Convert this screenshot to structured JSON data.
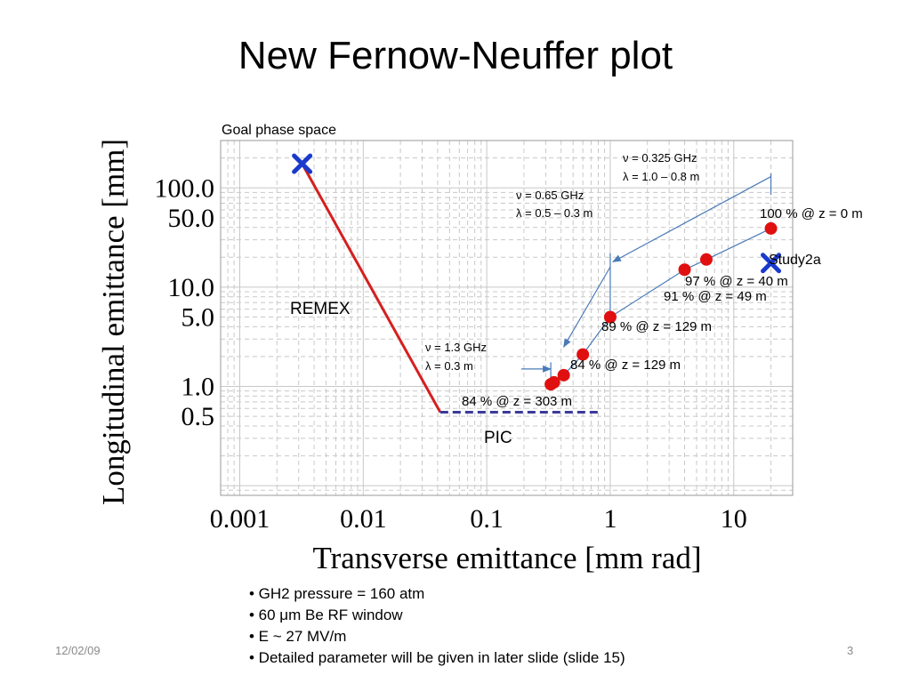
{
  "title": "New Fernow-Neuffer plot",
  "bullets": [
    "• GH2 pressure = 160 atm",
    "• 60 μm Be RF window",
    "• E ~ 27 MV/m",
    "• Detailed parameter will be given in later slide (slide 15)"
  ],
  "footer": {
    "date": "12/02/09",
    "page": "3"
  },
  "colors": {
    "remex_line": "#d42020",
    "pic_line": "#3a3a9a",
    "points": "#e01010",
    "markers": "#1a3acc",
    "arrows": "#4a7ab8",
    "grid": "#c8c8c8"
  },
  "chart_data": {
    "type": "scatter",
    "x_scale": "log",
    "y_scale": "log",
    "xlim": [
      0.0007,
      30
    ],
    "ylim": [
      0.08,
      300
    ],
    "grid": true,
    "xlabel": "Transverse emittance [mm rad]",
    "ylabel": "Longitudinal emittance [mm]",
    "x_ticks": [
      {
        "value": 0.001,
        "label": "0.001"
      },
      {
        "value": 0.01,
        "label": "0.01"
      },
      {
        "value": 0.1,
        "label": "0.1"
      },
      {
        "value": 1,
        "label": "1"
      },
      {
        "value": 10,
        "label": "10"
      }
    ],
    "y_ticks": [
      {
        "value": 100,
        "label": "100.0"
      },
      {
        "value": 50,
        "label": "50.0"
      },
      {
        "value": 10,
        "label": "10.0"
      },
      {
        "value": 5,
        "label": "5.0"
      },
      {
        "value": 1,
        "label": "1.0"
      },
      {
        "value": 0.5,
        "label": "0.5"
      }
    ],
    "points": [
      {
        "x": 0.33,
        "y": 1.05
      },
      {
        "x": 0.35,
        "y": 1.1
      },
      {
        "x": 0.42,
        "y": 1.3
      },
      {
        "x": 0.6,
        "y": 2.1
      },
      {
        "x": 1.0,
        "y": 5.0
      },
      {
        "x": 4.0,
        "y": 15.0
      },
      {
        "x": 6.0,
        "y": 19.0
      },
      {
        "x": 20.0,
        "y": 39.0
      }
    ],
    "markers": [
      {
        "x": 0.0032,
        "y": 175
      },
      {
        "x": 20.0,
        "y": 17.5
      }
    ],
    "remex_line": [
      {
        "x": 0.0032,
        "y": 175
      },
      {
        "x": 0.042,
        "y": 0.55
      }
    ],
    "pic_line": [
      {
        "x": 0.042,
        "y": 0.55
      },
      {
        "x": 0.85,
        "y": 0.55
      }
    ],
    "brackets": [
      {
        "x_from": 0.19,
        "x_to": 0.33,
        "y": 1.5,
        "vert_x": 0.33,
        "vert_y": [
          0.92,
          1.75
        ]
      },
      {
        "x_from": 1.0,
        "x_to": 0.42,
        "y_from": 16.0,
        "y_to": 2.5,
        "vert_x": 1.0,
        "vert_y": [
          5.5,
          22.0
        ]
      },
      {
        "x_from": 20.0,
        "x_to": 1.05,
        "y_from": 130,
        "y_to": 18.0,
        "vert_x": 20.0,
        "vert_y": [
          85,
          140
        ]
      }
    ],
    "annotations": {
      "goal": "Goal phase space",
      "remex": "REMEX",
      "pic": "PIC",
      "study2a": "Study2a",
      "ghz_0325": "ν = 0.325 GHz",
      "lambda_10_08": "λ = 1.0 – 0.8 m",
      "ghz_065": "ν = 0.65 GHz",
      "lambda_05_03": "λ = 0.5 – 0.3 m",
      "ghz_13": "ν = 1.3 GHz",
      "lambda_03": "λ = 0.3 m",
      "p100": "100 % @ z = 0 m",
      "p97": "97 % @ z = 40 m",
      "p91": "91 % @ z = 49 m",
      "p89": "89 % @ z = 129 m",
      "p84a": "84 % @ z = 129 m",
      "p84b": "84 % @ z = 303 m"
    }
  }
}
